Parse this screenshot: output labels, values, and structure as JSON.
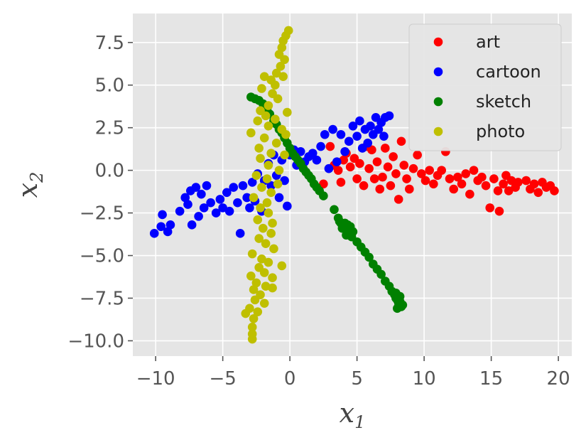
{
  "chart_data": {
    "type": "scatter",
    "title": "",
    "xlabel": {
      "base": "x",
      "sub": "1"
    },
    "ylabel": {
      "base": "x",
      "sub": "2"
    },
    "xlim": [
      -11.7,
      21.0
    ],
    "ylim": [
      -10.9,
      9.2
    ],
    "xticks": [
      -10,
      -5,
      0,
      5,
      10,
      15,
      20
    ],
    "xtick_labels": [
      "−10",
      "−5",
      "0",
      "5",
      "10",
      "15",
      "20"
    ],
    "yticks": [
      7.5,
      5.0,
      2.5,
      0.0,
      -2.5,
      -5.0,
      -7.5,
      -10.0
    ],
    "ytick_labels": [
      "7.5",
      "5.0",
      "2.5",
      "0.0",
      "−2.5",
      "−5.0",
      "−7.5",
      "−10.0"
    ],
    "grid": true,
    "background": "#e5e5e5",
    "legend_position": "top-right",
    "series": [
      {
        "name": "art",
        "color": "#ff0000",
        "points": [
          [
            2.5,
            -0.8
          ],
          [
            3.0,
            1.4
          ],
          [
            3.3,
            0.3
          ],
          [
            3.6,
            0.0
          ],
          [
            3.8,
            -0.7
          ],
          [
            4.0,
            0.6
          ],
          [
            4.2,
            1.0
          ],
          [
            4.5,
            0.2
          ],
          [
            4.8,
            0.7
          ],
          [
            5.0,
            -0.5
          ],
          [
            5.2,
            0.4
          ],
          [
            5.5,
            -0.9
          ],
          [
            5.7,
            1.4
          ],
          [
            5.9,
            0.1
          ],
          [
            6.1,
            1.2
          ],
          [
            6.3,
            -0.5
          ],
          [
            6.5,
            0.5
          ],
          [
            6.7,
            -1.1
          ],
          [
            6.9,
            -0.4
          ],
          [
            7.1,
            1.3
          ],
          [
            7.3,
            0.2
          ],
          [
            7.5,
            -0.9
          ],
          [
            7.7,
            0.8
          ],
          [
            7.9,
            -0.2
          ],
          [
            8.1,
            -1.7
          ],
          [
            8.3,
            1.7
          ],
          [
            8.5,
            0.3
          ],
          [
            8.7,
            -0.5
          ],
          [
            8.9,
            -1.1
          ],
          [
            9.2,
            0.1
          ],
          [
            9.5,
            0.9
          ],
          [
            9.8,
            -0.2
          ],
          [
            10.1,
            -0.6
          ],
          [
            10.4,
            0.0
          ],
          [
            10.7,
            -0.8
          ],
          [
            11.0,
            -0.3
          ],
          [
            11.3,
            0.0
          ],
          [
            11.6,
            1.1
          ],
          [
            11.9,
            -0.5
          ],
          [
            12.2,
            -1.1
          ],
          [
            12.5,
            -0.4
          ],
          [
            12.8,
            -0.8
          ],
          [
            13.1,
            -0.2
          ],
          [
            13.4,
            -1.4
          ],
          [
            13.7,
            0.0
          ],
          [
            14.0,
            -0.6
          ],
          [
            14.3,
            -0.4
          ],
          [
            14.6,
            -0.9
          ],
          [
            14.9,
            -2.2
          ],
          [
            15.2,
            -0.5
          ],
          [
            15.5,
            -1.2
          ],
          [
            15.6,
            -2.4
          ],
          [
            15.9,
            -0.8
          ],
          [
            16.1,
            -0.3
          ],
          [
            16.3,
            -1.2
          ],
          [
            16.5,
            -0.6
          ],
          [
            16.8,
            -1.0
          ],
          [
            17.0,
            -0.7
          ],
          [
            17.6,
            -0.6
          ],
          [
            17.9,
            -1.1
          ],
          [
            18.2,
            -0.8
          ],
          [
            18.5,
            -1.3
          ],
          [
            18.8,
            -0.7
          ],
          [
            19.1,
            -1.0
          ],
          [
            19.4,
            -0.9
          ],
          [
            19.7,
            -1.2
          ]
        ]
      },
      {
        "name": "cartoon",
        "color": "#0000ff",
        "points": [
          [
            -10.1,
            -3.7
          ],
          [
            -9.6,
            -3.3
          ],
          [
            -9.5,
            -2.6
          ],
          [
            -9.1,
            -3.6
          ],
          [
            -8.9,
            -3.2
          ],
          [
            -8.2,
            -2.4
          ],
          [
            -7.8,
            -1.6
          ],
          [
            -7.6,
            -2.0
          ],
          [
            -7.4,
            -1.2
          ],
          [
            -7.3,
            -3.2
          ],
          [
            -7.0,
            -1.0
          ],
          [
            -6.8,
            -2.7
          ],
          [
            -6.6,
            -1.4
          ],
          [
            -6.4,
            -2.2
          ],
          [
            -6.2,
            -0.9
          ],
          [
            -5.9,
            -1.9
          ],
          [
            -5.5,
            -2.5
          ],
          [
            -5.2,
            -1.7
          ],
          [
            -5.0,
            -2.2
          ],
          [
            -4.7,
            -1.3
          ],
          [
            -4.5,
            -2.4
          ],
          [
            -4.2,
            -1.0
          ],
          [
            -3.9,
            -1.9
          ],
          [
            -3.7,
            -3.7
          ],
          [
            -3.5,
            -0.9
          ],
          [
            -3.2,
            -1.6
          ],
          [
            -3.0,
            -2.2
          ],
          [
            -2.8,
            -0.7
          ],
          [
            -2.6,
            -1.8
          ],
          [
            -2.4,
            -0.2
          ],
          [
            -2.1,
            -2.4
          ],
          [
            -1.9,
            -0.6
          ],
          [
            -1.6,
            0.4
          ],
          [
            -1.4,
            -0.9
          ],
          [
            -1.2,
            0.9
          ],
          [
            -1.0,
            -0.3
          ],
          [
            -0.8,
            -1.6
          ],
          [
            -0.6,
            0.6
          ],
          [
            -0.4,
            -0.6
          ],
          [
            -0.2,
            -2.1
          ],
          [
            0.0,
            0.9
          ],
          [
            0.3,
            1.2
          ],
          [
            0.5,
            0.3
          ],
          [
            0.8,
            1.1
          ],
          [
            1.1,
            0.5
          ],
          [
            1.4,
            0.8
          ],
          [
            1.7,
            1.0
          ],
          [
            2.0,
            0.6
          ],
          [
            2.3,
            1.4
          ],
          [
            2.6,
            2.1
          ],
          [
            2.9,
            0.1
          ],
          [
            3.2,
            2.4
          ],
          [
            3.5,
            0.5
          ],
          [
            3.8,
            2.1
          ],
          [
            4.1,
            1.1
          ],
          [
            4.4,
            1.7
          ],
          [
            4.7,
            2.6
          ],
          [
            5.0,
            2.0
          ],
          [
            5.2,
            2.9
          ],
          [
            5.4,
            1.3
          ],
          [
            5.6,
            2.4
          ],
          [
            5.8,
            1.6
          ],
          [
            6.0,
            2.6
          ],
          [
            6.2,
            2.1
          ],
          [
            6.4,
            3.1
          ],
          [
            6.6,
            2.4
          ],
          [
            6.8,
            2.8
          ],
          [
            7.1,
            3.1
          ],
          [
            7.4,
            3.2
          ],
          [
            7.0,
            2.0
          ]
        ]
      },
      {
        "name": "sketch",
        "color": "#008000",
        "points": [
          [
            -2.9,
            4.3
          ],
          [
            -2.6,
            4.2
          ],
          [
            -2.3,
            4.1
          ],
          [
            -2.0,
            3.9
          ],
          [
            -1.7,
            3.6
          ],
          [
            -1.5,
            3.3
          ],
          [
            -1.2,
            2.9
          ],
          [
            -1.0,
            2.7
          ],
          [
            -0.8,
            2.4
          ],
          [
            -0.6,
            2.2
          ],
          [
            -0.4,
            1.9
          ],
          [
            -0.2,
            1.6
          ],
          [
            0.0,
            1.3
          ],
          [
            0.2,
            1.0
          ],
          [
            0.4,
            0.8
          ],
          [
            0.6,
            0.6
          ],
          [
            0.8,
            0.4
          ],
          [
            1.0,
            0.1
          ],
          [
            1.2,
            -0.1
          ],
          [
            1.4,
            -0.3
          ],
          [
            1.6,
            -0.5
          ],
          [
            1.8,
            -0.8
          ],
          [
            2.0,
            -1.0
          ],
          [
            2.2,
            -1.2
          ],
          [
            2.5,
            -1.5
          ],
          [
            3.3,
            -2.3
          ],
          [
            3.6,
            -2.8
          ],
          [
            3.7,
            -3.0
          ],
          [
            3.8,
            -3.1
          ],
          [
            3.9,
            -3.2
          ],
          [
            4.0,
            -3.3
          ],
          [
            4.1,
            -3.4
          ],
          [
            4.2,
            -3.5
          ],
          [
            4.3,
            -3.6
          ],
          [
            4.4,
            -3.7
          ],
          [
            4.5,
            -3.8
          ],
          [
            4.6,
            -3.9
          ],
          [
            4.1,
            -3.1
          ],
          [
            4.3,
            -3.2
          ],
          [
            4.5,
            -3.3
          ],
          [
            4.7,
            -3.6
          ],
          [
            3.9,
            -3.4
          ],
          [
            4.2,
            -3.8
          ],
          [
            5.0,
            -4.2
          ],
          [
            5.3,
            -4.5
          ],
          [
            5.6,
            -4.8
          ],
          [
            5.9,
            -5.1
          ],
          [
            6.2,
            -5.5
          ],
          [
            6.5,
            -5.8
          ],
          [
            6.8,
            -6.1
          ],
          [
            7.1,
            -6.5
          ],
          [
            7.4,
            -6.8
          ],
          [
            7.6,
            -7.1
          ],
          [
            7.8,
            -7.3
          ],
          [
            7.9,
            -7.5
          ],
          [
            8.0,
            -7.6
          ],
          [
            8.1,
            -7.8
          ],
          [
            8.2,
            -7.7
          ],
          [
            8.3,
            -8.0
          ],
          [
            8.4,
            -7.9
          ],
          [
            8.2,
            -7.4
          ],
          [
            8.0,
            -8.1
          ],
          [
            7.9,
            -7.2
          ]
        ]
      },
      {
        "name": "photo",
        "color": "#bfbf00",
        "points": [
          [
            -0.1,
            8.2
          ],
          [
            -0.3,
            7.9
          ],
          [
            -0.5,
            7.6
          ],
          [
            -0.6,
            7.2
          ],
          [
            -0.8,
            6.8
          ],
          [
            -0.4,
            6.5
          ],
          [
            -0.7,
            6.1
          ],
          [
            -1.0,
            5.7
          ],
          [
            -0.5,
            5.5
          ],
          [
            -1.4,
            5.3
          ],
          [
            -1.9,
            5.5
          ],
          [
            -1.1,
            5.0
          ],
          [
            -2.1,
            4.8
          ],
          [
            -1.3,
            4.5
          ],
          [
            -0.9,
            4.2
          ],
          [
            -1.6,
            3.8
          ],
          [
            -2.2,
            3.5
          ],
          [
            -1.8,
            3.2
          ],
          [
            -1.1,
            3.0
          ],
          [
            -0.2,
            3.4
          ],
          [
            -2.4,
            2.9
          ],
          [
            -1.6,
            2.6
          ],
          [
            -0.6,
            2.4
          ],
          [
            -0.3,
            2.1
          ],
          [
            -2.9,
            2.2
          ],
          [
            -1.9,
            1.9
          ],
          [
            -1.0,
            1.6
          ],
          [
            -2.3,
            1.3
          ],
          [
            -1.4,
            1.0
          ],
          [
            -0.4,
            0.9
          ],
          [
            -2.2,
            0.7
          ],
          [
            -1.6,
            0.3
          ],
          [
            -0.8,
            0.0
          ],
          [
            -2.5,
            -0.3
          ],
          [
            -1.7,
            -0.5
          ],
          [
            -0.9,
            -0.8
          ],
          [
            -2.1,
            -1.0
          ],
          [
            -1.4,
            -1.3
          ],
          [
            -2.7,
            -1.6
          ],
          [
            -1.7,
            -1.9
          ],
          [
            -2.2,
            -2.2
          ],
          [
            -1.6,
            -2.5
          ],
          [
            -2.4,
            -2.9
          ],
          [
            -1.3,
            -3.1
          ],
          [
            -2.0,
            -3.4
          ],
          [
            -1.4,
            -3.7
          ],
          [
            -2.3,
            -4.0
          ],
          [
            -1.8,
            -4.3
          ],
          [
            -1.2,
            -4.6
          ],
          [
            -2.8,
            -4.9
          ],
          [
            -2.1,
            -5.2
          ],
          [
            -1.6,
            -5.4
          ],
          [
            -0.6,
            -5.6
          ],
          [
            -2.3,
            -5.7
          ],
          [
            -1.9,
            -6.0
          ],
          [
            -2.9,
            -6.2
          ],
          [
            -1.3,
            -6.3
          ],
          [
            -2.5,
            -6.6
          ],
          [
            -1.8,
            -6.8
          ],
          [
            -2.7,
            -7.0
          ],
          [
            -2.2,
            -7.3
          ],
          [
            -1.3,
            -6.9
          ],
          [
            -2.6,
            -7.6
          ],
          [
            -1.9,
            -7.8
          ],
          [
            -3.0,
            -8.1
          ],
          [
            -2.4,
            -8.3
          ],
          [
            -3.3,
            -8.4
          ],
          [
            -2.7,
            -8.7
          ],
          [
            -2.8,
            -9.2
          ],
          [
            -2.8,
            -9.6
          ],
          [
            -2.8,
            -9.9
          ]
        ]
      }
    ]
  }
}
